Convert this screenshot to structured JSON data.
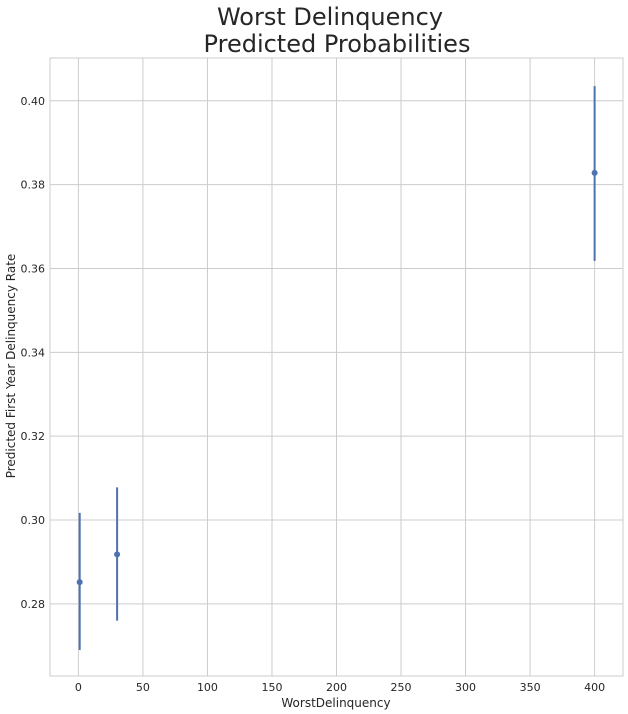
{
  "chart_data": {
    "type": "scatter",
    "title": [
      "Worst Delinquency",
      "Predicted Probabilities"
    ],
    "xlabel": "WorstDelinquency",
    "ylabel": "Predicted First Year Delinquency Rate",
    "xlim": [
      -22,
      422
    ],
    "ylim": [
      0.2628,
      0.4102
    ],
    "x_ticks": [
      0,
      50,
      100,
      150,
      200,
      250,
      300,
      350,
      400
    ],
    "y_ticks": [
      0.28,
      0.3,
      0.32,
      0.34,
      0.36,
      0.38,
      0.4
    ],
    "grid": true,
    "legend": "none",
    "series": [
      {
        "color": "#4c72b0",
        "points": [
          {
            "x": 1,
            "y": 0.2852,
            "lower": 0.269,
            "upper": 0.3017
          },
          {
            "x": 30,
            "y": 0.2918,
            "lower": 0.276,
            "upper": 0.3078
          },
          {
            "x": 400,
            "y": 0.3828,
            "lower": 0.3618,
            "upper": 0.4035
          }
        ]
      }
    ]
  }
}
